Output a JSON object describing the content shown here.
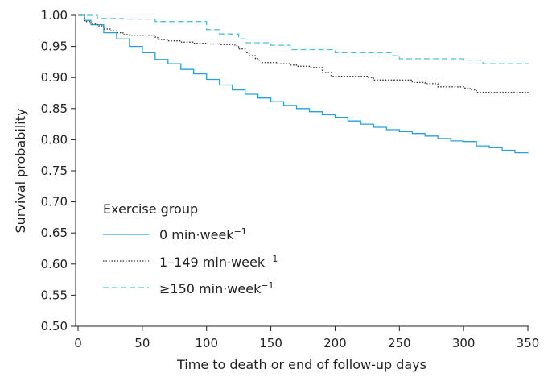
{
  "chart_data": {
    "type": "line",
    "title": "",
    "xlabel": "Time to death or end of follow-up days",
    "ylabel": "Survival probability",
    "xlim": [
      0,
      350
    ],
    "ylim": [
      0.5,
      1.0
    ],
    "x_ticks": [
      "0",
      "50",
      "100",
      "150",
      "200",
      "250",
      "300",
      "350"
    ],
    "y_ticks": [
      "0.50",
      "0.55",
      "0.60",
      "0.65",
      "0.70",
      "0.75",
      "0.80",
      "0.85",
      "0.90",
      "0.95",
      "1.00"
    ],
    "grid": false,
    "legend": {
      "title": "Exercise group",
      "placement": "lower-left",
      "entries": [
        {
          "label_main": "0 min·week",
          "label_sup": "−1"
        },
        {
          "label_main": "1–149 min·week",
          "label_sup": "−1"
        },
        {
          "label_main": "≥150 min·week",
          "label_sup": "−1"
        }
      ]
    },
    "series": [
      {
        "name": "0 min·week−1",
        "style": "solid",
        "color": "#2aa0d2",
        "x": [
          0,
          5,
          10,
          20,
          30,
          40,
          50,
          60,
          70,
          80,
          90,
          100,
          110,
          120,
          130,
          140,
          150,
          160,
          170,
          180,
          190,
          200,
          210,
          220,
          230,
          240,
          250,
          260,
          270,
          280,
          290,
          300,
          310,
          320,
          330,
          340,
          350
        ],
        "y": [
          1.0,
          0.992,
          0.985,
          0.972,
          0.962,
          0.95,
          0.94,
          0.929,
          0.922,
          0.913,
          0.906,
          0.897,
          0.888,
          0.88,
          0.873,
          0.867,
          0.861,
          0.855,
          0.85,
          0.845,
          0.84,
          0.836,
          0.83,
          0.825,
          0.82,
          0.816,
          0.813,
          0.81,
          0.806,
          0.802,
          0.798,
          0.797,
          0.79,
          0.787,
          0.783,
          0.779,
          0.778
        ]
      },
      {
        "name": "1–149 min·week−1",
        "style": "dotted",
        "color": "#333333",
        "x": [
          0,
          5,
          10,
          15,
          20,
          25,
          30,
          35,
          40,
          45,
          60,
          62,
          70,
          80,
          90,
          100,
          110,
          122,
          125,
          130,
          133,
          138,
          140,
          143,
          155,
          165,
          170,
          180,
          190,
          197,
          200,
          210,
          225,
          230,
          240,
          250,
          260,
          265,
          270,
          275,
          280,
          290,
          300,
          305,
          310,
          320,
          330,
          340,
          350
        ],
        "y": [
          1.0,
          0.99,
          0.986,
          0.983,
          0.978,
          0.975,
          0.972,
          0.969,
          0.968,
          0.968,
          0.965,
          0.961,
          0.959,
          0.957,
          0.955,
          0.954,
          0.953,
          0.951,
          0.946,
          0.94,
          0.935,
          0.93,
          0.928,
          0.924,
          0.922,
          0.92,
          0.918,
          0.916,
          0.908,
          0.902,
          0.902,
          0.902,
          0.9,
          0.896,
          0.896,
          0.896,
          0.892,
          0.892,
          0.89,
          0.89,
          0.885,
          0.885,
          0.883,
          0.88,
          0.876,
          0.876,
          0.876,
          0.876,
          0.877
        ]
      },
      {
        "name": "≥150 min·week−1",
        "style": "dashed",
        "color": "#4fbfd6",
        "x": [
          0,
          15,
          35,
          45,
          60,
          100,
          110,
          125,
          130,
          150,
          165,
          200,
          245,
          250,
          300,
          315,
          350
        ],
        "y": [
          1.0,
          0.995,
          0.994,
          0.994,
          0.99,
          0.977,
          0.97,
          0.962,
          0.956,
          0.952,
          0.945,
          0.94,
          0.935,
          0.93,
          0.928,
          0.922,
          0.921
        ]
      }
    ]
  }
}
